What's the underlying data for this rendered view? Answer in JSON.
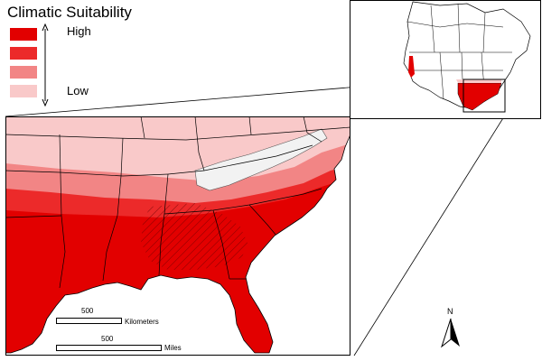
{
  "legend": {
    "title": "Climatic Suitability",
    "high_label": "High",
    "low_label": "Low",
    "colors": [
      "#e20000",
      "#ec2a2a",
      "#f28585",
      "#f9c9c9"
    ]
  },
  "scale_bar_km": {
    "value_label": "500",
    "unit_label": "Kilometers"
  },
  "scale_bar_mi": {
    "value_label": "500",
    "unit_label": "Miles"
  },
  "north_arrow": {
    "label": "N"
  },
  "inset": {
    "region": "North America"
  },
  "main_map": {
    "region": "Southeastern United States"
  }
}
